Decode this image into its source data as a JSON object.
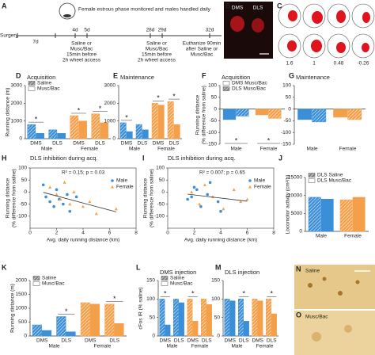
{
  "panel_labels": [
    "A",
    "B",
    "C",
    "D",
    "E",
    "F",
    "G",
    "H",
    "I",
    "J",
    "K",
    "L",
    "M",
    "N",
    "O"
  ],
  "timeline": {
    "surgery": "Surgery",
    "first_interval": "7d",
    "monitor": "Female estrous phase monitored and males handled daily",
    "days": [
      "4d",
      "5d",
      "28d",
      "29d",
      "32d"
    ],
    "treatment_a": [
      "Saline or",
      "Musc/Bac",
      "15min before",
      "2h wheel access"
    ],
    "treatment_b": [
      "Saline or",
      "Musc/Bac",
      "15min before",
      "2h wheel access"
    ],
    "euthanize": [
      "Euthanize 90min",
      "after Saline or",
      "Musc/Bac"
    ]
  },
  "histology": {
    "b_labels": [
      "DMS",
      "DLS"
    ],
    "c_labels": [
      "1.6",
      "1",
      "0.48",
      "-0.26"
    ],
    "n_label": "Saline",
    "o_label": "Musc/Bac"
  },
  "chart_data": [
    {
      "type": "bar",
      "title": "Acquisition",
      "ylabel": [
        "Running distance (m)"
      ],
      "categories": [
        "DMS",
        "DLS",
        "DMS",
        "DLS"
      ],
      "groups": [
        "Male",
        "Female"
      ],
      "colors": [
        "#3b8fd8",
        "#f4a04a"
      ],
      "series": [
        {
          "name": "Saline",
          "hatch": true,
          "values": [
            800,
            500,
            1300,
            1400
          ]
        },
        {
          "name": "Musc/Bac",
          "hatch": false,
          "values": [
            300,
            300,
            1000,
            900
          ]
        }
      ],
      "ylim": [
        0,
        3000
      ],
      "yticks": [
        0,
        1000,
        2000,
        3000
      ],
      "legend": "upper left",
      "stars": [
        "*",
        "*",
        "*"
      ]
    },
    {
      "type": "bar",
      "title": "Maintenance",
      "categories": [
        "DMS",
        "DLS",
        "DMS",
        "DLS"
      ],
      "groups": [
        "Male",
        "Female"
      ],
      "colors": [
        "#3b8fd8",
        "#f4a04a"
      ],
      "series": [
        {
          "hatch": true,
          "values": [
            900,
            800,
            2000,
            2100
          ]
        },
        {
          "hatch": false,
          "values": [
            400,
            500,
            1900,
            800
          ]
        }
      ],
      "ylim": [
        0,
        3000
      ],
      "yticks": [
        0,
        1000,
        2000,
        3000
      ],
      "stars": [
        "*",
        "*",
        "*"
      ]
    },
    {
      "type": "bar",
      "title": "Acquisition",
      "ylabel": [
        "Running distance",
        "(% difference from saline)"
      ],
      "categories": [
        "Male",
        "Female"
      ],
      "colors": [
        "#3b8fd8",
        "#f4a04a"
      ],
      "series": [
        {
          "name": "DMS Musc/Bac",
          "hatch": false,
          "values": [
            -45,
            -25
          ]
        },
        {
          "name": "DLS Musc/Bac",
          "hatch": true,
          "values": [
            -30,
            -40
          ]
        }
      ],
      "ylim": [
        -150,
        100
      ],
      "yticks": [
        -150,
        -100,
        -50,
        0,
        50,
        100
      ],
      "legend": "upper left",
      "stars": [
        "*",
        "*"
      ]
    },
    {
      "type": "bar",
      "title": "Maintenance",
      "categories": [
        "Male",
        "Female"
      ],
      "colors": [
        "#3b8fd8",
        "#f4a04a"
      ],
      "series": [
        {
          "hatch": false,
          "values": [
            -45,
            -35
          ]
        },
        {
          "hatch": true,
          "values": [
            -55,
            -45
          ]
        }
      ],
      "ylim": [
        -150,
        100
      ],
      "yticks": [
        -150,
        -100,
        -50,
        0,
        50,
        100
      ],
      "stars": []
    },
    {
      "type": "scatter",
      "title": "DLS inhibition during acq.",
      "annotation": "R² = 0.15; p = 0.03",
      "xlabel": "Avg. daily running distance (km)",
      "ylabel": [
        "Running distance",
        "(% difference from saline)"
      ],
      "series": [
        {
          "name": "Male",
          "color": "#3b8fd8",
          "marker": "circle",
          "x": [
            1.2,
            1.5,
            1.8,
            2.0,
            2.2,
            2.5,
            2.8,
            3.0,
            3.5,
            1.0
          ],
          "values": [
            -20,
            -40,
            -60,
            10,
            -30,
            -50,
            -10,
            -80,
            -20,
            30
          ]
        },
        {
          "name": "Female",
          "color": "#f4a04a",
          "marker": "triangle",
          "x": [
            1.5,
            2.0,
            2.3,
            2.6,
            3.0,
            3.3,
            4.0,
            4.5,
            5.0,
            6.5
          ],
          "values": [
            20,
            -10,
            -30,
            40,
            -50,
            0,
            -60,
            -40,
            -90,
            -70
          ]
        }
      ],
      "xlim": [
        0,
        8
      ],
      "xticks": [
        0,
        2,
        4,
        6,
        8
      ],
      "ylim": [
        -150,
        100
      ],
      "yticks": [
        -100,
        -50,
        0,
        50,
        100
      ],
      "legend": "upper right"
    },
    {
      "type": "scatter",
      "title": "DLS inhibition during acq.",
      "annotation": "R² = 0.007; p = 0.65",
      "xlabel": "Avg. daily running distance (km)",
      "ylabel": [
        "Running distance",
        "(% difference from saline)"
      ],
      "series": [
        {
          "name": "Male",
          "color": "#3b8fd8",
          "marker": "circle",
          "x": [
            1.5,
            2,
            2.5,
            3,
            3.2,
            3.8,
            4,
            2.2,
            1.8
          ],
          "values": [
            -30,
            20,
            -60,
            -10,
            40,
            -40,
            -80,
            10,
            -20
          ]
        },
        {
          "name": "Female",
          "color": "#f4a04a",
          "marker": "triangle",
          "x": [
            1.8,
            2.4,
            2.8,
            3.4,
            4.2,
            5,
            5.5,
            6
          ],
          "values": [
            0,
            -50,
            30,
            -20,
            -70,
            10,
            -40,
            -30
          ]
        }
      ],
      "xlim": [
        0,
        8
      ],
      "xticks": [
        0,
        2,
        4,
        6,
        8
      ],
      "ylim": [
        -150,
        100
      ],
      "yticks": [
        -100,
        -50,
        0,
        50,
        100
      ],
      "legend": "upper right"
    },
    {
      "type": "bar",
      "ylabel": [
        "Locomotor activity (cm²/h)"
      ],
      "categories": [
        "Male",
        "Female"
      ],
      "colors": [
        "#3b8fd8",
        "#f4a04a"
      ],
      "series": [
        {
          "name": "DLS Saline",
          "hatch": true,
          "values": [
            9500,
            8800
          ]
        },
        {
          "name": "DLS Musc/Bac",
          "hatch": false,
          "values": [
            9000,
            9500
          ]
        }
      ],
      "ylim": [
        0,
        15000
      ],
      "yticks": [
        0,
        5000,
        10000,
        15000
      ],
      "legend": "upper left",
      "stars": []
    },
    {
      "type": "bar",
      "ylabel": [
        "Running distance (m)"
      ],
      "categories": [
        "DMS",
        "DLS",
        "DMS",
        "DLS"
      ],
      "groups": [
        "Male",
        "Female"
      ],
      "colors": [
        "#3b8fd8",
        "#f4a04a"
      ],
      "series": [
        {
          "name": "Saline",
          "hatch": true,
          "values": [
            400,
            700,
            1200,
            1150
          ]
        },
        {
          "name": "Musc/Bac",
          "hatch": false,
          "values": [
            200,
            150,
            1150,
            450
          ]
        }
      ],
      "ylim": [
        0,
        2000
      ],
      "yticks": [
        0,
        500,
        1000,
        1500,
        2000
      ],
      "legend": "upper left",
      "stars": [
        "*",
        "*"
      ]
    },
    {
      "type": "bar",
      "title": "DMS injection",
      "ylabel": [
        "cFos IR (% saline)"
      ],
      "categories": [
        "DMS",
        "DLS",
        "DMS",
        "DLS"
      ],
      "groups": [
        "Male",
        "Female"
      ],
      "colors": [
        "#3b8fd8",
        "#f4a04a"
      ],
      "series": [
        {
          "name": "Saline",
          "hatch": true,
          "values": [
            100,
            100,
            100,
            100
          ]
        },
        {
          "name": "Musc/Bac",
          "hatch": false,
          "values": [
            30,
            90,
            40,
            85
          ]
        }
      ],
      "ylim": [
        0,
        150
      ],
      "yticks": [
        0,
        50,
        100,
        150
      ],
      "legend": "upper left",
      "stars": [
        "*",
        "*"
      ]
    },
    {
      "type": "bar",
      "title": "DLS injection",
      "categories": [
        "DMS",
        "DLS",
        "DMS",
        "DLS"
      ],
      "groups": [
        "Male",
        "Female"
      ],
      "colors": [
        "#3b8fd8",
        "#f4a04a"
      ],
      "series": [
        {
          "hatch": true,
          "values": [
            100,
            100,
            100,
            100
          ]
        },
        {
          "hatch": false,
          "values": [
            95,
            40,
            95,
            60
          ]
        }
      ],
      "ylim": [
        0,
        150
      ],
      "yticks": [
        0,
        50,
        100,
        150
      ],
      "stars": [
        "*",
        "*"
      ]
    }
  ]
}
